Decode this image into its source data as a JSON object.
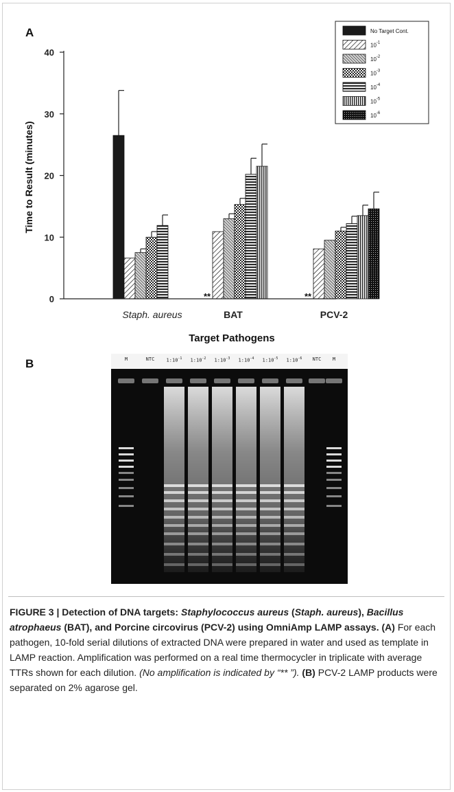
{
  "panel_a_label": "A",
  "panel_b_label": "B",
  "chart_data": {
    "type": "bar",
    "xlabel": "Target Pathogens",
    "ylabel": "Time to Result (minutes)",
    "ylim": [
      0,
      40
    ],
    "yticks": [
      0,
      10,
      20,
      30,
      40
    ],
    "categories": [
      "Staph. aureus",
      "BAT",
      "PCV-2"
    ],
    "no_amplification_marker": "**",
    "series": [
      {
        "name": "No Target Cont.",
        "legend_label": "No Target Cont.",
        "pattern": "solid",
        "values": [
          26.5,
          null,
          null
        ],
        "errors": [
          7.3,
          null,
          null
        ]
      },
      {
        "name": "10^-1",
        "legend_base": "10",
        "legend_exp": "-1",
        "pattern": "diag",
        "values": [
          6.6,
          10.9,
          8.1
        ],
        "errors": [
          0,
          0,
          0
        ]
      },
      {
        "name": "10^-2",
        "legend_base": "10",
        "legend_exp": "-2",
        "pattern": "diag-dense",
        "values": [
          7.5,
          13.0,
          9.5
        ],
        "errors": [
          0.6,
          0.8,
          0
        ]
      },
      {
        "name": "10^-3",
        "legend_base": "10",
        "legend_exp": "-3",
        "pattern": "checker",
        "values": [
          10.0,
          15.3,
          11.0
        ],
        "errors": [
          0.9,
          1.0,
          0.6
        ]
      },
      {
        "name": "10^-4",
        "legend_base": "10",
        "legend_exp": "-4",
        "pattern": "hlines",
        "values": [
          11.9,
          20.2,
          12.2
        ],
        "errors": [
          1.7,
          2.6,
          1.2
        ]
      },
      {
        "name": "10^-5",
        "legend_base": "10",
        "legend_exp": "-5",
        "pattern": "vlines",
        "values": [
          null,
          21.5,
          13.5
        ],
        "errors": [
          null,
          3.6,
          1.7
        ]
      },
      {
        "name": "10^-6",
        "legend_base": "10",
        "legend_exp": "-6",
        "pattern": "dots",
        "values": [
          null,
          null,
          14.6
        ],
        "errors": [
          null,
          null,
          2.7
        ]
      }
    ],
    "no_amplification_at": [
      "BAT",
      "PCV-2"
    ],
    "legend_position": "top-right",
    "grid": false
  },
  "gel": {
    "lane_labels": [
      {
        "base": "M"
      },
      {
        "base": "NTC"
      },
      {
        "base": "1:10",
        "exp": "-1"
      },
      {
        "base": "1:10",
        "exp": "-2"
      },
      {
        "base": "1:10",
        "exp": "-3"
      },
      {
        "base": "1:10",
        "exp": "-4"
      },
      {
        "base": "1:10",
        "exp": "-5"
      },
      {
        "base": "1:10",
        "exp": "-6"
      },
      {
        "base": "NTC"
      },
      {
        "base": "M"
      }
    ]
  },
  "caption": {
    "figure_title": "FIGURE 3 | Detection of DNA targets: ",
    "t1": "Staphylococcus aureus",
    "t2": " (",
    "t3": "Staph. aureus",
    "t4": "), ",
    "t5": "Bacillus atrophaeus",
    "t6": " (BAT), and Porcine circovirus (PCV-2) using OmniAmp LAMP assays. ",
    "a_label": "(A)",
    "a_text": " For each pathogen, 10-fold serial dilutions of extracted DNA were prepared in water and used as template in LAMP reaction. Amplification was performed on a real time thermocycler in triplicate with average TTRs shown for each dilution. ",
    "a_note": "(No amplification is indicated by “** ”).",
    "b_label": " (B)",
    "b_text": " PCV-2 LAMP products were separated on 2% agarose gel."
  }
}
